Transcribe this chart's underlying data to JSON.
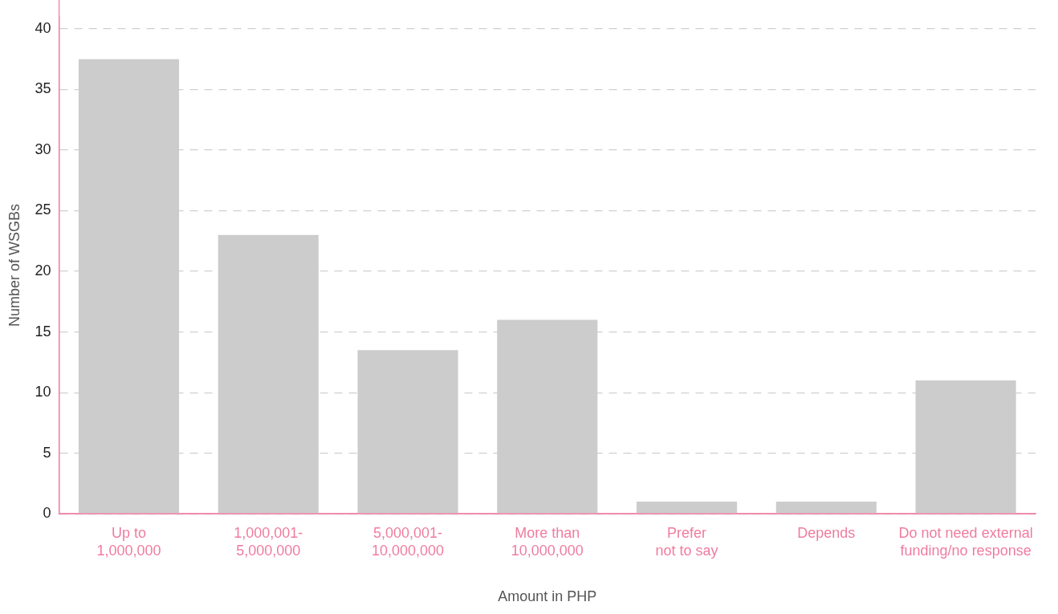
{
  "chart_data": {
    "type": "bar",
    "xlabel": "Amount in PHP",
    "ylabel": "Number of WSGBs",
    "categories": [
      "Up to 1,000,000",
      "1,000,001-5,000,000",
      "5,000,001-10,000,000",
      "More than 10,000,000",
      "Prefer not to say",
      "Depends",
      "Do not need external funding/no response"
    ],
    "values": [
      37.5,
      23,
      13.5,
      16,
      1,
      1,
      11
    ],
    "color": "#cccccc",
    "ylim": [
      0,
      41
    ],
    "yticks": [
      0,
      5,
      10,
      15,
      20,
      25,
      30,
      35,
      40
    ],
    "grid": "y",
    "line_style": "dashed",
    "legend": false
  }
}
